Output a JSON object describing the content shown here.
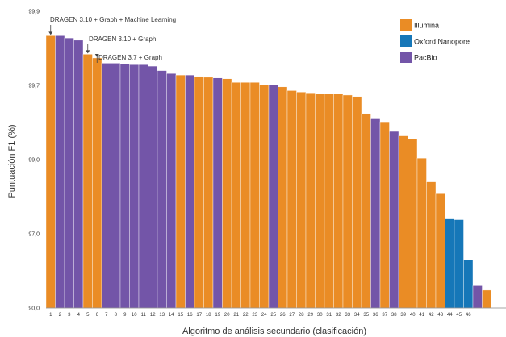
{
  "chart_data": {
    "type": "bar",
    "xlabel": "Algoritmo de análisis secundario (clasificación)",
    "ylabel": "Puntuación F1 (%)",
    "yticks": [
      "99,9",
      "99,7",
      "99,0",
      "97,0",
      "90,0"
    ],
    "ylim": [
      0,
      4
    ],
    "colors": {
      "Illumina": "#ea8c25",
      "Oxford Nanopore": "#1677b8",
      "PacBio": "#7355a8"
    },
    "legend": [
      {
        "name": "Illumina",
        "color": "#ea8c25"
      },
      {
        "name": "Oxford Nanopore",
        "color": "#1677b8"
      },
      {
        "name": "PacBio",
        "color": "#7355a8"
      }
    ],
    "annotations": [
      {
        "text": "DRAGEN 3.10 + Graph + Machine Learning",
        "rank": 1
      },
      {
        "text": "DRAGEN 3.10 + Graph",
        "rank": 5
      },
      {
        "text": "DRAGEN 3.7 + Graph",
        "rank": 6
      }
    ],
    "bars": [
      {
        "rank": "1",
        "value": 3.67,
        "platform": "Illumina"
      },
      {
        "rank": "2",
        "value": 3.67,
        "platform": "PacBio"
      },
      {
        "rank": "3",
        "value": 3.64,
        "platform": "PacBio"
      },
      {
        "rank": "4",
        "value": 3.61,
        "platform": "PacBio"
      },
      {
        "rank": "5",
        "value": 3.42,
        "platform": "Illumina"
      },
      {
        "rank": "6",
        "value": 3.37,
        "platform": "Illumina"
      },
      {
        "rank": "7",
        "value": 3.3,
        "platform": "PacBio"
      },
      {
        "rank": "8",
        "value": 3.3,
        "platform": "PacBio"
      },
      {
        "rank": "9",
        "value": 3.29,
        "platform": "PacBio"
      },
      {
        "rank": "10",
        "value": 3.28,
        "platform": "PacBio"
      },
      {
        "rank": "11",
        "value": 3.28,
        "platform": "PacBio"
      },
      {
        "rank": "12",
        "value": 3.26,
        "platform": "PacBio"
      },
      {
        "rank": "13",
        "value": 3.2,
        "platform": "PacBio"
      },
      {
        "rank": "14",
        "value": 3.16,
        "platform": "PacBio"
      },
      {
        "rank": "15",
        "value": 3.14,
        "platform": "Illumina"
      },
      {
        "rank": "16",
        "value": 3.14,
        "platform": "PacBio"
      },
      {
        "rank": "17",
        "value": 3.12,
        "platform": "Illumina"
      },
      {
        "rank": "18",
        "value": 3.11,
        "platform": "Illumina"
      },
      {
        "rank": "19",
        "value": 3.1,
        "platform": "PacBio"
      },
      {
        "rank": "20",
        "value": 3.09,
        "platform": "Illumina"
      },
      {
        "rank": "21",
        "value": 3.04,
        "platform": "Illumina"
      },
      {
        "rank": "22",
        "value": 3.04,
        "platform": "Illumina"
      },
      {
        "rank": "23",
        "value": 3.04,
        "platform": "Illumina"
      },
      {
        "rank": "24",
        "value": 3.01,
        "platform": "Illumina"
      },
      {
        "rank": "25",
        "value": 3.01,
        "platform": "PacBio"
      },
      {
        "rank": "26",
        "value": 2.98,
        "platform": "Illumina"
      },
      {
        "rank": "27",
        "value": 2.93,
        "platform": "Illumina"
      },
      {
        "rank": "28",
        "value": 2.91,
        "platform": "Illumina"
      },
      {
        "rank": "29",
        "value": 2.9,
        "platform": "Illumina"
      },
      {
        "rank": "30",
        "value": 2.89,
        "platform": "Illumina"
      },
      {
        "rank": "31",
        "value": 2.89,
        "platform": "Illumina"
      },
      {
        "rank": "32",
        "value": 2.89,
        "platform": "Illumina"
      },
      {
        "rank": "33",
        "value": 2.87,
        "platform": "Illumina"
      },
      {
        "rank": "34",
        "value": 2.85,
        "platform": "Illumina"
      },
      {
        "rank": "35",
        "value": 2.62,
        "platform": "Illumina"
      },
      {
        "rank": "36",
        "value": 2.56,
        "platform": "PacBio"
      },
      {
        "rank": "37",
        "value": 2.51,
        "platform": "Illumina"
      },
      {
        "rank": "38",
        "value": 2.38,
        "platform": "PacBio"
      },
      {
        "rank": "39",
        "value": 2.32,
        "platform": "Illumina"
      },
      {
        "rank": "40",
        "value": 2.28,
        "platform": "Illumina"
      },
      {
        "rank": "41",
        "value": 2.02,
        "platform": "Illumina"
      },
      {
        "rank": "42",
        "value": 1.7,
        "platform": "Illumina"
      },
      {
        "rank": "43",
        "value": 1.54,
        "platform": "Illumina"
      },
      {
        "rank": "44",
        "value": 1.2,
        "platform": "Oxford Nanopore"
      },
      {
        "rank": "45",
        "value": 1.19,
        "platform": "Oxford Nanopore"
      },
      {
        "rank": "46",
        "value": 0.65,
        "platform": "Oxford Nanopore"
      },
      {
        "rank": "",
        "value": 0.3,
        "platform": "PacBio"
      },
      {
        "rank": "",
        "value": 0.24,
        "platform": "Illumina"
      }
    ]
  }
}
